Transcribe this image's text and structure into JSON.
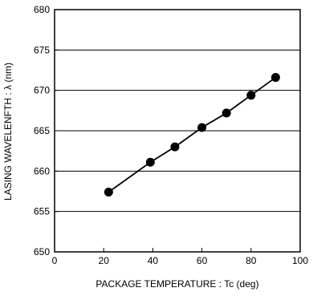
{
  "chart_data": {
    "type": "line",
    "title": "",
    "xlabel": "PACKAGE TEMPERATURE : Tc (deg)",
    "ylabel": "LASING WAVELENFTH : λ (nm)",
    "xlim": [
      0,
      100
    ],
    "ylim": [
      650,
      680
    ],
    "x_ticks": [
      0,
      20,
      40,
      60,
      80,
      100
    ],
    "y_ticks": [
      650,
      655,
      660,
      665,
      670,
      675,
      680
    ],
    "y_grid": true,
    "x_grid": false,
    "legend": "none",
    "series": [
      {
        "x": [
          22,
          39,
          49,
          60,
          70,
          80,
          90
        ],
        "y": [
          657.4,
          661.1,
          663.0,
          665.4,
          667.2,
          669.4,
          671.6
        ],
        "color": "#000000",
        "marker": "filled-circle"
      }
    ]
  }
}
